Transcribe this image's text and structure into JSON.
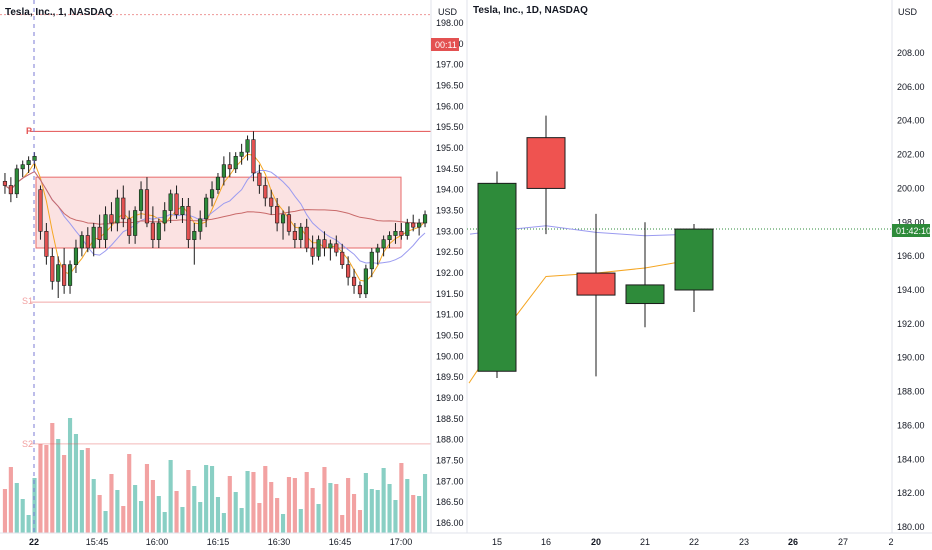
{
  "left_panel": {
    "title": "Tesla, Inc., 1, NASDAQ",
    "currency": "USD",
    "countdown": "00:11",
    "y_ticks": [
      "198.00",
      "197.50",
      "197.00",
      "196.50",
      "196.00",
      "195.50",
      "195.00",
      "194.50",
      "194.00",
      "193.50",
      "193.00",
      "192.50",
      "192.00",
      "191.50",
      "191.00",
      "190.50",
      "190.00",
      "189.50",
      "189.00",
      "188.50",
      "188.00",
      "187.50",
      "187.00",
      "186.50",
      "186.00"
    ],
    "x_ticks": [
      "22",
      "15:45",
      "16:00",
      "16:15",
      "16:30",
      "16:45",
      "17:00"
    ],
    "pivot_label": "P",
    "s1_label": "S1",
    "s2_label": "S2",
    "colors": {
      "up": "#2e8b3a",
      "down": "#e35151",
      "vol_up": "#89cfc4",
      "vol_down": "#f2a2a2",
      "ma_fast": "#f5a623",
      "ma_mid": "#9b9bf0",
      "ma_slow": "#c96a6a",
      "level": "#e35151",
      "box": "#fbdede"
    }
  },
  "right_panel": {
    "title": "Tesla, Inc., 1D, NASDAQ",
    "currency": "USD",
    "price_tag": "01:42:10",
    "y_ticks": [
      "208.00",
      "206.00",
      "204.00",
      "202.00",
      "200.00",
      "198.00",
      "196.00",
      "194.00",
      "192.00",
      "190.00",
      "188.00",
      "186.00",
      "184.00",
      "182.00",
      "180.00"
    ],
    "x_ticks": [
      "15",
      "16",
      "20",
      "21",
      "22",
      "23",
      "26",
      "27",
      "2"
    ],
    "colors": {
      "up": "#2e8b3a",
      "down": "#ef5350",
      "ma": "#f5a623",
      "ma2": "#9b9bf0"
    }
  },
  "chart_data": [
    {
      "type": "candlestick",
      "title": "Tesla, Inc., 1, NASDAQ",
      "interval": "1 minute",
      "ylabel": "USD",
      "ylim": [
        185.8,
        198.3
      ],
      "x_ticks": [
        "22",
        "15:45",
        "16:00",
        "16:15",
        "16:30",
        "16:45",
        "17:00"
      ],
      "levels": {
        "P": 195.4,
        "S1": 191.3,
        "S2": 187.9,
        "upper": 198.2
      },
      "last_price": 198.0,
      "ohlc": [
        [
          194.2,
          194.4,
          193.9,
          194.1
        ],
        [
          194.1,
          194.3,
          193.7,
          193.9
        ],
        [
          193.9,
          194.6,
          193.8,
          194.5
        ],
        [
          194.5,
          194.7,
          194.3,
          194.6
        ],
        [
          194.6,
          194.8,
          194.4,
          194.7
        ],
        [
          194.7,
          194.9,
          194.5,
          194.8
        ],
        [
          194.0,
          194.1,
          192.8,
          193.0
        ],
        [
          193.0,
          193.2,
          192.2,
          192.4
        ],
        [
          192.4,
          192.6,
          191.6,
          191.8
        ],
        [
          191.8,
          192.4,
          191.4,
          192.2
        ],
        [
          192.2,
          192.6,
          191.5,
          191.7
        ],
        [
          191.7,
          192.3,
          191.5,
          192.2
        ],
        [
          192.2,
          192.8,
          192.0,
          192.6
        ],
        [
          192.6,
          193.0,
          192.4,
          192.9
        ],
        [
          192.9,
          193.1,
          192.5,
          192.6
        ],
        [
          192.6,
          193.2,
          192.4,
          193.1
        ],
        [
          193.1,
          193.4,
          192.6,
          192.8
        ],
        [
          192.8,
          193.6,
          192.6,
          193.4
        ],
        [
          193.4,
          193.7,
          193.0,
          193.2
        ],
        [
          193.2,
          194.0,
          193.0,
          193.8
        ],
        [
          193.8,
          194.1,
          193.1,
          193.3
        ],
        [
          193.3,
          193.5,
          192.7,
          192.9
        ],
        [
          192.9,
          193.6,
          192.7,
          193.5
        ],
        [
          193.5,
          194.2,
          193.3,
          194.0
        ],
        [
          194.0,
          194.3,
          193.1,
          193.2
        ],
        [
          193.2,
          193.6,
          192.6,
          192.8
        ],
        [
          192.8,
          193.3,
          192.6,
          193.2
        ],
        [
          193.2,
          193.7,
          193.0,
          193.5
        ],
        [
          193.5,
          194.0,
          193.2,
          193.9
        ],
        [
          193.9,
          194.1,
          193.3,
          193.4
        ],
        [
          193.4,
          193.8,
          193.2,
          193.6
        ],
        [
          193.6,
          193.8,
          192.6,
          192.8
        ],
        [
          192.8,
          193.2,
          192.2,
          193.0
        ],
        [
          193.0,
          193.5,
          192.8,
          193.3
        ],
        [
          193.3,
          193.9,
          193.1,
          193.8
        ],
        [
          193.8,
          194.2,
          193.6,
          194.0
        ],
        [
          194.0,
          194.4,
          193.9,
          194.3
        ],
        [
          194.3,
          194.8,
          194.1,
          194.6
        ],
        [
          194.6,
          194.9,
          194.3,
          194.5
        ],
        [
          194.5,
          194.9,
          194.4,
          194.8
        ],
        [
          194.8,
          195.1,
          194.6,
          194.9
        ],
        [
          194.9,
          195.3,
          194.7,
          195.2
        ],
        [
          195.2,
          195.4,
          194.2,
          194.4
        ],
        [
          194.4,
          194.6,
          193.9,
          194.1
        ],
        [
          194.1,
          194.3,
          193.6,
          193.8
        ],
        [
          193.8,
          194.0,
          193.4,
          193.6
        ],
        [
          193.6,
          193.8,
          193.0,
          193.2
        ],
        [
          193.2,
          193.5,
          192.8,
          193.4
        ],
        [
          193.4,
          193.6,
          192.9,
          193.0
        ],
        [
          193.0,
          193.2,
          192.6,
          192.8
        ],
        [
          192.8,
          193.2,
          192.6,
          193.1
        ],
        [
          193.1,
          193.3,
          192.5,
          192.6
        ],
        [
          192.6,
          192.9,
          192.2,
          192.4
        ],
        [
          192.4,
          192.9,
          192.3,
          192.8
        ],
        [
          192.8,
          193.0,
          192.4,
          192.6
        ],
        [
          192.6,
          192.8,
          192.3,
          192.7
        ],
        [
          192.7,
          192.9,
          192.4,
          192.5
        ],
        [
          192.5,
          192.7,
          192.1,
          192.2
        ],
        [
          192.2,
          192.4,
          191.7,
          191.9
        ],
        [
          191.9,
          192.1,
          191.5,
          191.7
        ],
        [
          191.7,
          191.8,
          191.4,
          191.5
        ],
        [
          191.5,
          192.2,
          191.4,
          192.1
        ],
        [
          192.1,
          192.6,
          191.9,
          192.5
        ],
        [
          192.5,
          192.7,
          192.2,
          192.6
        ],
        [
          192.6,
          192.9,
          192.4,
          192.8
        ],
        [
          192.8,
          193.0,
          192.6,
          192.9
        ],
        [
          192.9,
          193.2,
          192.7,
          193.0
        ],
        [
          193.0,
          193.2,
          192.8,
          192.9
        ],
        [
          192.9,
          193.3,
          192.8,
          193.2
        ],
        [
          193.2,
          193.4,
          193.0,
          193.1
        ],
        [
          193.1,
          193.3,
          192.9,
          193.2
        ],
        [
          193.2,
          193.5,
          193.1,
          193.4
        ]
      ]
    },
    {
      "type": "candlestick",
      "title": "Tesla, Inc., 1D, NASDAQ",
      "interval": "1 day",
      "ylabel": "USD",
      "ylim": [
        179.5,
        209.5
      ],
      "x_ticks": [
        "15",
        "16",
        "20",
        "21",
        "22",
        "23",
        "26",
        "27",
        "2"
      ],
      "last_price": 197.6,
      "ohlc": [
        [
          189.2,
          201.0,
          188.8,
          200.3
        ],
        [
          203.0,
          204.3,
          197.3,
          200.0
        ],
        [
          195.0,
          198.5,
          188.9,
          193.7
        ],
        [
          193.2,
          198.0,
          191.8,
          194.3
        ],
        [
          194.0,
          197.9,
          192.7,
          197.6
        ]
      ],
      "candle_dates": [
        "15",
        "16",
        "20",
        "21",
        "22"
      ]
    }
  ]
}
